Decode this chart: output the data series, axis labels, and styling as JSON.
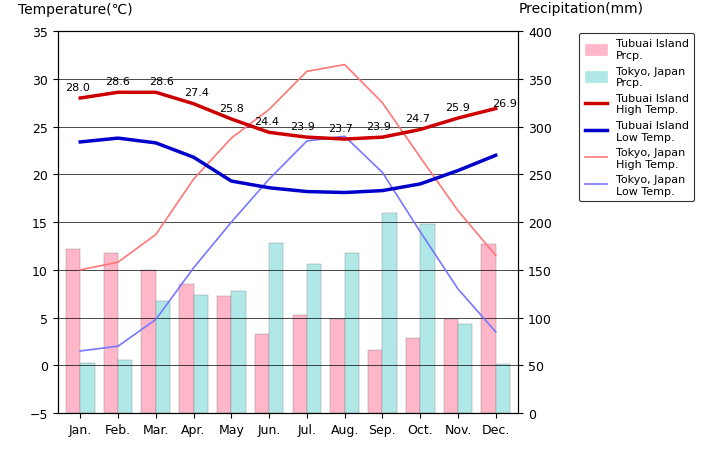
{
  "months": [
    "Jan.",
    "Feb.",
    "Mar.",
    "Apr.",
    "May",
    "Jun.",
    "Jul.",
    "Aug.",
    "Sep.",
    "Oct.",
    "Nov.",
    "Dec."
  ],
  "tubuai_high": [
    28.0,
    28.6,
    28.6,
    27.4,
    25.8,
    24.4,
    23.9,
    23.7,
    23.9,
    24.7,
    25.9,
    26.9
  ],
  "tubuai_low": [
    23.4,
    23.8,
    23.3,
    21.8,
    19.3,
    18.6,
    18.2,
    18.1,
    18.3,
    19.0,
    20.4,
    22.0
  ],
  "tokyo_high": [
    10.0,
    10.8,
    13.7,
    19.5,
    23.8,
    26.8,
    30.8,
    31.5,
    27.5,
    21.8,
    16.2,
    11.5
  ],
  "tokyo_low": [
    1.5,
    2.0,
    4.8,
    10.2,
    15.0,
    19.5,
    23.5,
    24.0,
    20.2,
    14.0,
    8.0,
    3.5
  ],
  "tubuai_prcp": [
    172,
    168,
    150,
    135,
    123,
    83,
    103,
    98,
    66,
    79,
    98,
    177
  ],
  "tokyo_prcp": [
    52,
    56,
    117,
    124,
    128,
    178,
    156,
    168,
    210,
    198,
    93,
    51
  ],
  "plot_bg_color": "#c8c8c8",
  "tubuai_bar_color": "#ffb6c8",
  "tokyo_bar_color": "#b0e8e8",
  "tubuai_high_color": "#cc0000",
  "tubuai_low_color": "#0000cc",
  "tokyo_high_color": "#ff7777",
  "tokyo_low_color": "#7777ff",
  "ylim_temp": [
    -5,
    35
  ],
  "ylim_prcp": [
    0,
    400
  ],
  "title_left": "Temperature(℃)",
  "title_right": "Precipitation(mm)",
  "yticks_temp": [
    -5,
    0,
    5,
    10,
    15,
    20,
    25,
    30,
    35
  ],
  "yticks_prcp": [
    0,
    50,
    100,
    150,
    200,
    250,
    300,
    350,
    400
  ]
}
